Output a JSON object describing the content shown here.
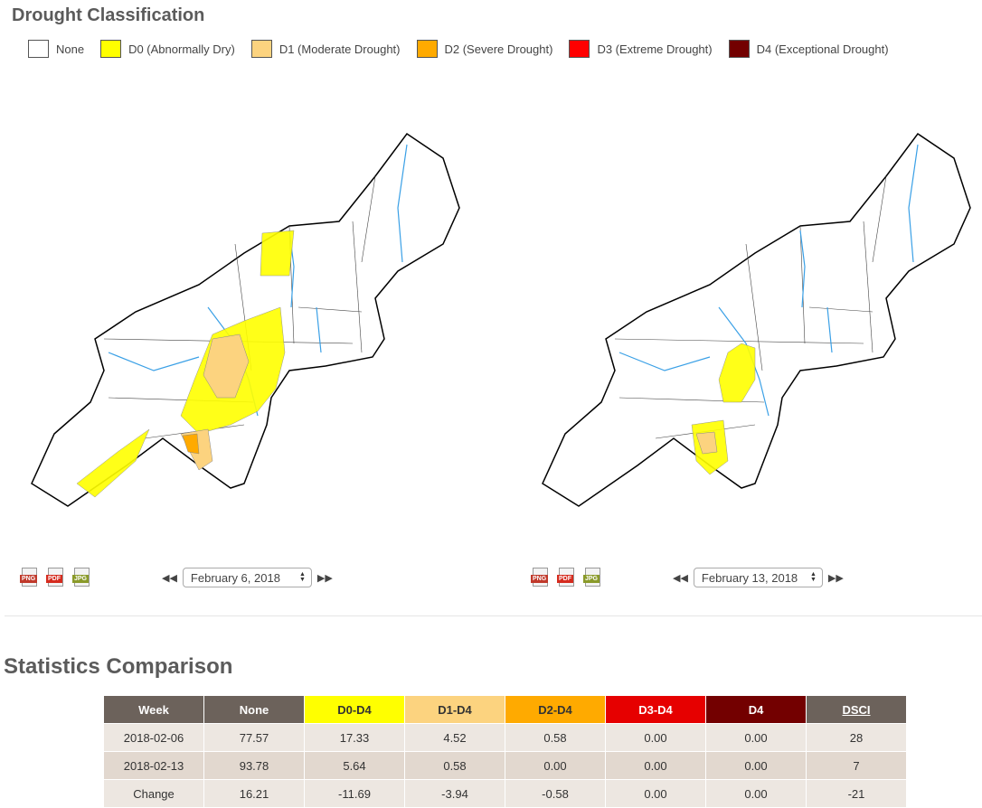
{
  "drought_title": "Drought Classification",
  "legend": [
    {
      "label": "None",
      "color": "#ffffff"
    },
    {
      "label": "D0 (Abnormally Dry)",
      "color": "#ffff00"
    },
    {
      "label": "D1 (Moderate Drought)",
      "color": "#fcd37f"
    },
    {
      "label": "D2 (Severe Drought)",
      "color": "#ffaa00"
    },
    {
      "label": "D3 (Extreme Drought)",
      "color": "#ff0000"
    },
    {
      "label": "D4 (Exceptional Drought)",
      "color": "#730000"
    }
  ],
  "file_icons": [
    "PNG",
    "PDF",
    "JPG"
  ],
  "maps": {
    "left": {
      "date": "February 6, 2018"
    },
    "right": {
      "date": "February 13, 2018"
    }
  },
  "stats": {
    "title": "Statistics Comparison",
    "headers": [
      "Week",
      "None",
      "D0-D4",
      "D1-D4",
      "D2-D4",
      "D3-D4",
      "D4",
      "DSCI"
    ],
    "rows": [
      [
        "2018-02-06",
        "77.57",
        "17.33",
        "4.52",
        "0.58",
        "0.00",
        "0.00",
        "28"
      ],
      [
        "2018-02-13",
        "93.78",
        "5.64",
        "0.58",
        "0.00",
        "0.00",
        "0.00",
        "7"
      ],
      [
        "Change",
        "16.21",
        "-11.69",
        "-3.94",
        "-0.58",
        "0.00",
        "0.00",
        "-21"
      ]
    ]
  }
}
